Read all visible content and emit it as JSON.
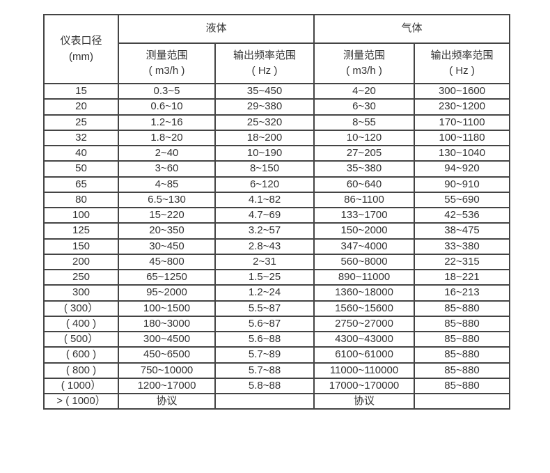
{
  "table": {
    "header": {
      "diameter": {
        "line1": "仪表口径",
        "line2": "(mm)"
      },
      "groups": [
        {
          "label": "液体",
          "cols": [
            {
              "line1": "测量范围",
              "line2": "( m3/h )"
            },
            {
              "line1": "输出频率范围",
              "line2": "( Hz )"
            }
          ]
        },
        {
          "label": "气体",
          "cols": [
            {
              "line1": "测量范围",
              "line2": "( m3/h )"
            },
            {
              "line1": "输出频率范围",
              "line2": "( Hz )"
            }
          ]
        }
      ]
    },
    "rows": [
      [
        "15",
        "0.3~5",
        "35~450",
        "4~20",
        "300~1600"
      ],
      [
        "20",
        "0.6~10",
        "29~380",
        "6~30",
        "230~1200"
      ],
      [
        "25",
        "1.2~16",
        "25~320",
        "8~55",
        "170~1100"
      ],
      [
        "32",
        "1.8~20",
        "18~200",
        "10~120",
        "100~1180"
      ],
      [
        "40",
        "2~40",
        "10~190",
        "27~205",
        "130~1040"
      ],
      [
        "50",
        "3~60",
        "8~150",
        "35~380",
        "94~920"
      ],
      [
        "65",
        "4~85",
        "6~120",
        "60~640",
        "90~910"
      ],
      [
        "80",
        "6.5~130",
        "4.1~82",
        "86~1100",
        "55~690"
      ],
      [
        "100",
        "15~220",
        "4.7~69",
        "133~1700",
        "42~536"
      ],
      [
        "125",
        "20~350",
        "3.2~57",
        "150~2000",
        "38~475"
      ],
      [
        "150",
        "30~450",
        "2.8~43",
        "347~4000",
        "33~380"
      ],
      [
        "200",
        "45~800",
        "2~31",
        "560~8000",
        "22~315"
      ],
      [
        "250",
        "65~1250",
        "1.5~25",
        "890~11000",
        "18~221"
      ],
      [
        "300",
        "95~2000",
        "1.2~24",
        "1360~18000",
        "16~213"
      ],
      [
        "( 300）",
        "100~1500",
        "5.5~87",
        "1560~15600",
        "85~880"
      ],
      [
        "( 400 )",
        "180~3000",
        "5.6~87",
        "2750~27000",
        "85~880"
      ],
      [
        "( 500）",
        "300~4500",
        "5.6~88",
        "4300~43000",
        "85~880"
      ],
      [
        "( 600 )",
        "450~6500",
        "5.7~89",
        "6100~61000",
        "85~880"
      ],
      [
        "( 800 )",
        "750~10000",
        "5.7~88",
        "11000~110000",
        "85~880"
      ],
      [
        "( 1000）",
        "1200~17000",
        "5.8~88",
        "17000~170000",
        "85~880"
      ],
      [
        "> ( 1000）",
        "协议",
        "",
        "协议",
        ""
      ]
    ]
  },
  "colors": {
    "border": "#444444",
    "text": "#333333",
    "background": "#ffffff"
  }
}
